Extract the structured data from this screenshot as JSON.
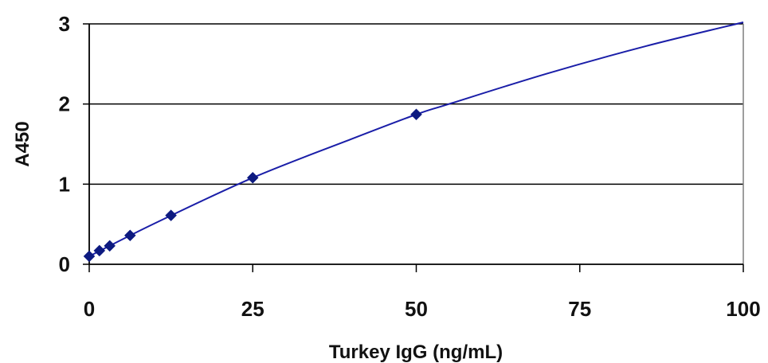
{
  "chart_data": {
    "type": "scatter",
    "title": "",
    "xlabel": "Turkey IgG (ng/mL)",
    "ylabel": "A450",
    "xlim": [
      0,
      100
    ],
    "ylim": [
      0,
      3
    ],
    "x_ticks": [
      "0",
      "25",
      "50",
      "75",
      "100"
    ],
    "y_ticks": [
      "0",
      "1",
      "2",
      "3"
    ],
    "grid": "horizontal",
    "legend": "none",
    "series": [
      {
        "marker": "diamond",
        "x": [
          0,
          1.56,
          3.13,
          6.25,
          12.5,
          25,
          50
        ],
        "y": [
          0.1,
          0.17,
          0.23,
          0.36,
          0.61,
          1.08,
          1.87
        ]
      }
    ],
    "fit_curve": {
      "x": [
        0,
        10,
        25,
        40,
        50,
        55,
        70,
        85,
        100
      ],
      "y": [
        0.1,
        0.51,
        1.08,
        1.56,
        1.87,
        2.0,
        2.38,
        2.72,
        3.02
      ]
    },
    "colors": {
      "series": "#0d1a80",
      "curve": "#1a1ea8",
      "grid": "#000000",
      "axis": "#7f7f7f"
    }
  }
}
